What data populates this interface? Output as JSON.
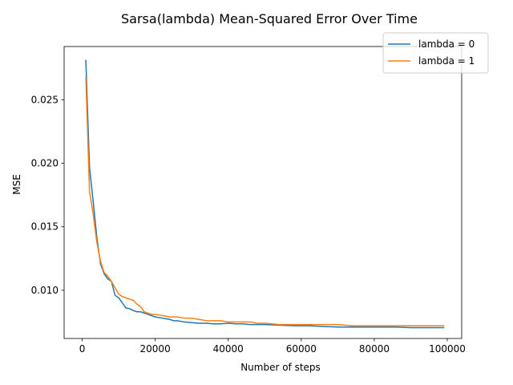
{
  "chart_data": {
    "type": "line",
    "title": "Sarsa(lambda) Mean-Squared Error Over Time",
    "xlabel": "Number of steps",
    "ylabel": "MSE",
    "xlim": [
      -4950,
      103950
    ],
    "ylim": [
      0.0062,
      0.0292
    ],
    "xticks": [
      0,
      20000,
      40000,
      60000,
      80000,
      100000
    ],
    "yticks": [
      0.01,
      0.015,
      0.02,
      0.025
    ],
    "xtick_labels": [
      "0",
      "20000",
      "40000",
      "60000",
      "80000",
      "100000"
    ],
    "ytick_labels": [
      "0.010",
      "0.015",
      "0.020",
      "0.025"
    ],
    "grid": false,
    "legend_position": "top-right",
    "series": [
      {
        "name": "lambda = 0",
        "color": "#1f77b4",
        "x": [
          1000,
          2000,
          3000,
          4000,
          5000,
          6000,
          7000,
          8000,
          9000,
          10000,
          11000,
          12000,
          13000,
          14000,
          15000,
          16000,
          17000,
          18000,
          19000,
          20000,
          22000,
          24000,
          25000,
          26000,
          28000,
          30000,
          32000,
          34000,
          36000,
          38000,
          40000,
          42000,
          44000,
          46000,
          48000,
          50000,
          54000,
          58000,
          62000,
          66000,
          70000,
          74000,
          78000,
          82000,
          86000,
          90000,
          94000,
          99000
        ],
        "y": [
          0.0281,
          0.0197,
          0.017,
          0.0142,
          0.0121,
          0.0113,
          0.0109,
          0.0107,
          0.0096,
          0.0094,
          0.009,
          0.0086,
          0.00855,
          0.0084,
          0.0083,
          0.0083,
          0.0082,
          0.0081,
          0.008,
          0.0079,
          0.0078,
          0.0077,
          0.0076,
          0.0076,
          0.0075,
          0.00745,
          0.0074,
          0.0074,
          0.00735,
          0.00735,
          0.0074,
          0.00735,
          0.00735,
          0.0073,
          0.0073,
          0.0073,
          0.00725,
          0.0072,
          0.0072,
          0.00715,
          0.0071,
          0.0071,
          0.0071,
          0.0071,
          0.0071,
          0.00705,
          0.00705,
          0.00705
        ]
      },
      {
        "name": "lambda = 1",
        "color": "#ff7f0e",
        "x": [
          1000,
          2000,
          3000,
          4000,
          5000,
          6000,
          7000,
          8000,
          9000,
          10000,
          11000,
          12000,
          13000,
          14000,
          15000,
          16000,
          17000,
          18000,
          19000,
          20000,
          22000,
          24000,
          26000,
          28000,
          30000,
          32000,
          34000,
          36000,
          38000,
          40000,
          42000,
          44000,
          46000,
          48000,
          50000,
          54000,
          58000,
          62000,
          66000,
          70000,
          74000,
          78000,
          82000,
          86000,
          90000,
          94000,
          99000
        ],
        "y": [
          0.0268,
          0.0178,
          0.016,
          0.0138,
          0.0123,
          0.0114,
          0.0111,
          0.0107,
          0.0102,
          0.0097,
          0.0095,
          0.0094,
          0.0093,
          0.0092,
          0.0089,
          0.0087,
          0.0083,
          0.0082,
          0.0081,
          0.0081,
          0.008,
          0.0079,
          0.0079,
          0.0078,
          0.0078,
          0.0077,
          0.0076,
          0.0076,
          0.0076,
          0.0075,
          0.0075,
          0.0075,
          0.0075,
          0.0074,
          0.0074,
          0.0073,
          0.0073,
          0.0073,
          0.0073,
          0.0073,
          0.0072,
          0.0072,
          0.0072,
          0.0072,
          0.0072,
          0.0072,
          0.0072
        ]
      }
    ]
  }
}
